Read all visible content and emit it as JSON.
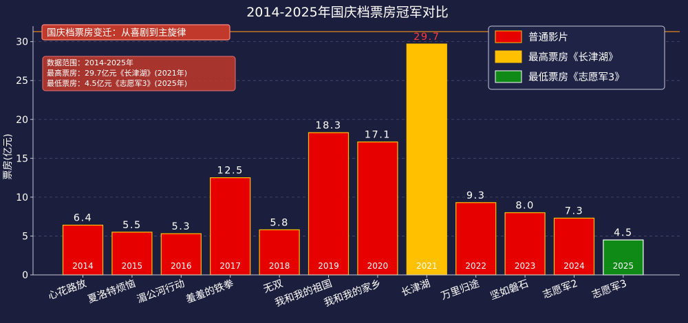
{
  "chart_data": {
    "type": "bar",
    "title": "2014-2025年国庆档票房冠军对比",
    "ylabel": "票房(亿元)",
    "xlabel": "",
    "ylim": [
      0,
      32
    ],
    "yticks": [
      0,
      5,
      10,
      15,
      20,
      25,
      30
    ],
    "grid": true,
    "legend_position": "top-right",
    "categories": [
      "心花路放",
      "夏洛特烦恼",
      "湄公河行动",
      "羞羞的铁拳",
      "无双",
      "我和我的祖国",
      "我和我的家乡",
      "长津湖",
      "万里归途",
      "坚如磐石",
      "志愿军2",
      "志愿军3"
    ],
    "years": [
      "2014",
      "2015",
      "2016",
      "2017",
      "2018",
      "2019",
      "2020",
      "2021",
      "2022",
      "2023",
      "2024",
      "2025"
    ],
    "values": [
      6.4,
      5.5,
      5.3,
      12.5,
      5.8,
      18.3,
      17.1,
      29.7,
      9.3,
      8.0,
      7.3,
      4.5
    ],
    "value_labels": [
      "6.4",
      "5.5",
      "5.3",
      "12.5",
      "5.8",
      "18.3",
      "17.1",
      "29.7",
      "9.3",
      "8.0",
      "7.3",
      "4.5"
    ],
    "bar_groups": [
      "normal",
      "normal",
      "normal",
      "normal",
      "normal",
      "normal",
      "normal",
      "highest",
      "normal",
      "normal",
      "normal",
      "lowest"
    ],
    "legend": [
      {
        "key": "normal",
        "label": "普通影片"
      },
      {
        "key": "highest",
        "label": "最高票房《长津湖》"
      },
      {
        "key": "lowest",
        "label": "最低票房《志愿军3》"
      }
    ],
    "annotations": {
      "headline": "国庆档票房变迁：从喜剧到主旋律",
      "info_lines": [
        "数据范围：2014-2025年",
        "最高票房：29.7亿元《长津湖》(2021年)",
        "最低票房：4.5亿元《志愿军3》(2025年)"
      ]
    }
  },
  "colors": {
    "background": "#1b1e3c",
    "normal": "#e60000",
    "highest": "#ffc000",
    "lowest": "#0f8a17",
    "bar_edge": "#ffc000",
    "lowest_edge": "#ffffff",
    "reference_line": "#e8861f",
    "box_fill": "#c0392b"
  }
}
